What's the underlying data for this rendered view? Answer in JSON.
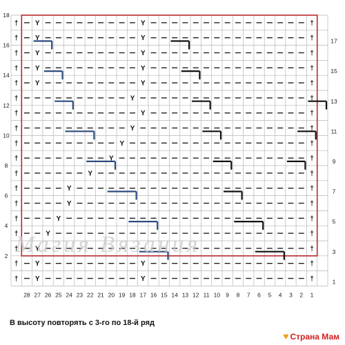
{
  "chart_data": {
    "type": "knitting-chart",
    "columns": 28,
    "rows": 18,
    "col_labels": [
      "28",
      "27",
      "26",
      "25",
      "24",
      "23",
      "22",
      "21",
      "20",
      "19",
      "18",
      "17",
      "16",
      "15",
      "14",
      "13",
      "12",
      "11",
      "10",
      "9",
      "8",
      "7",
      "6",
      "5",
      "4",
      "3",
      "2",
      "1"
    ],
    "left_row_labels": [
      "2",
      "4",
      "6",
      "8",
      "10",
      "12",
      "14",
      "16",
      "18"
    ],
    "right_row_labels": [
      "1",
      "3",
      "5",
      "7",
      "9",
      "11",
      "13",
      "15",
      "17"
    ],
    "symbols": {
      "edge": "†",
      "knit": "—",
      "slip": "Y"
    },
    "grid": [
      "E—Y—————————Y———————————————E",
      "E—Y—————————Y———————————————E",
      "E—Y—————————Y———————————————E",
      "E—Y—————————Y———————————————E",
      "E—Y—————————Y———————————————E",
      "E——————————Y————————————————E",
      "E———————————Y———————————————E",
      "E——————————Y————————————————E",
      "E—————————Y—————————————————E",
      "E————————Y——————————————————E",
      "E——————Y————————————————————E",
      "E————Y——————————————————————E",
      "E————Y——————————————————————E",
      "E———Y———————————————————————E",
      "E——Y————————————————————————E",
      "E—Y—————————————————————————E",
      "E—Y—————————Y———————————————E",
      "E—Y—————————Y———————————————E"
    ],
    "blue_steps": [
      [
        27,
        26,
        17
      ],
      [
        26,
        25,
        15
      ],
      [
        25,
        24,
        13
      ],
      [
        24,
        22,
        11
      ],
      [
        22,
        20,
        9
      ],
      [
        20,
        18,
        7
      ],
      [
        18,
        16,
        5
      ],
      [
        17,
        15,
        3
      ]
    ],
    "black_steps": [
      [
        14,
        13,
        17
      ],
      [
        13,
        12,
        15
      ],
      [
        12,
        11,
        13
      ],
      [
        11,
        10,
        11
      ],
      [
        10,
        9,
        9
      ],
      [
        9,
        8,
        7
      ],
      [
        8,
        6,
        5
      ],
      [
        6,
        4,
        3
      ],
      [
        3,
        2,
        9
      ],
      [
        2,
        1,
        11
      ],
      [
        1,
        0,
        13
      ]
    ]
  },
  "note": "В высоту повторять с 3-го по 18-й ряд",
  "watermark": "Магия Вязания",
  "site": "Страна Мам"
}
